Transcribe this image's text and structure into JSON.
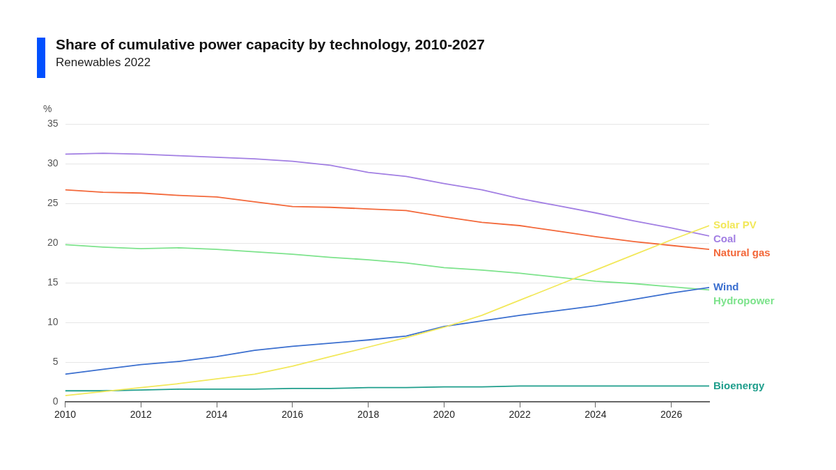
{
  "chart_data": {
    "type": "line",
    "title": "Share of cumulative power capacity by technology, 2010-2027",
    "subtitle": "Renewables 2022",
    "ylabel": "%",
    "x": [
      2010,
      2011,
      2012,
      2013,
      2014,
      2015,
      2016,
      2017,
      2018,
      2019,
      2020,
      2021,
      2022,
      2023,
      2024,
      2025,
      2026,
      2027
    ],
    "xlim": [
      2010,
      2027
    ],
    "xticks": [
      2010,
      2012,
      2014,
      2016,
      2018,
      2020,
      2022,
      2024,
      2026
    ],
    "ylim": [
      0,
      35
    ],
    "yticks": [
      0,
      5,
      10,
      15,
      20,
      25,
      30,
      35
    ],
    "grid": "y",
    "legend": false,
    "marker": "none",
    "line_style": "solid",
    "series": [
      {
        "name": "Solar PV",
        "color": "#f2e85a",
        "values": [
          0.8,
          1.3,
          1.8,
          2.3,
          2.9,
          3.5,
          4.5,
          5.7,
          6.9,
          8.1,
          9.4,
          10.9,
          12.8,
          14.7,
          16.6,
          18.5,
          20.4,
          22.2
        ]
      },
      {
        "name": "Coal",
        "color": "#a27fe3",
        "values": [
          31.2,
          31.3,
          31.2,
          31.0,
          30.8,
          30.6,
          30.3,
          29.8,
          28.9,
          28.4,
          27.5,
          26.7,
          25.6,
          24.7,
          23.8,
          22.8,
          21.9,
          20.9
        ]
      },
      {
        "name": "Natural gas",
        "color": "#f3683a",
        "values": [
          26.7,
          26.4,
          26.3,
          26.0,
          25.8,
          25.2,
          24.6,
          24.5,
          24.3,
          24.1,
          23.3,
          22.6,
          22.2,
          21.5,
          20.8,
          20.2,
          19.7,
          19.2
        ]
      },
      {
        "name": "Wind",
        "color": "#3b6fcf",
        "values": [
          3.5,
          4.1,
          4.7,
          5.1,
          5.7,
          6.5,
          7.0,
          7.4,
          7.8,
          8.3,
          9.5,
          10.2,
          10.9,
          11.5,
          12.1,
          12.9,
          13.7,
          14.4
        ]
      },
      {
        "name": "Hydropower",
        "color": "#7de38c",
        "values": [
          19.8,
          19.5,
          19.3,
          19.4,
          19.2,
          18.9,
          18.6,
          18.2,
          17.9,
          17.5,
          16.9,
          16.6,
          16.2,
          15.7,
          15.2,
          14.9,
          14.5,
          14.1
        ]
      },
      {
        "name": "Bioenergy",
        "color": "#1f9e8c",
        "values": [
          1.4,
          1.4,
          1.5,
          1.6,
          1.6,
          1.6,
          1.7,
          1.7,
          1.8,
          1.8,
          1.9,
          1.9,
          2.0,
          2.0,
          2.0,
          2.0,
          2.0,
          2.0
        ]
      }
    ]
  }
}
